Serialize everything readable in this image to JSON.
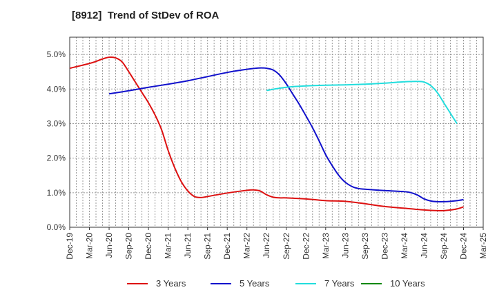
{
  "chart_data": {
    "type": "line",
    "title": "[8912]  Trend of StDev of ROA",
    "xlabel": "",
    "ylabel": "",
    "x_ticks": [
      "Dec-19",
      "Mar-20",
      "Jun-20",
      "Sep-20",
      "Dec-20",
      "Mar-21",
      "Jun-21",
      "Sep-21",
      "Dec-21",
      "Mar-22",
      "Jun-22",
      "Sep-22",
      "Dec-22",
      "Mar-23",
      "Jun-23",
      "Sep-23",
      "Dec-23",
      "Mar-24",
      "Jun-24",
      "Sep-24",
      "Dec-24",
      "Mar-25"
    ],
    "y_ticks": [
      "0.0%",
      "1.0%",
      "2.0%",
      "3.0%",
      "4.0%",
      "5.0%"
    ],
    "ylim": [
      0,
      5.5
    ],
    "grid": true,
    "legend_position": "bottom",
    "series": [
      {
        "name": "3 Years",
        "color": "#dd1111",
        "points": [
          [
            "Dec-19",
            4.6
          ],
          [
            "Mar-20",
            4.74
          ],
          [
            "Apr-20",
            4.8
          ],
          [
            "May-20",
            4.87
          ],
          [
            "Jun-20",
            4.92
          ],
          [
            "Jul-20",
            4.9
          ],
          [
            "Aug-20",
            4.78
          ],
          [
            "Sep-20",
            4.5
          ],
          [
            "Oct-20",
            4.2
          ],
          [
            "Nov-20",
            3.9
          ],
          [
            "Dec-20",
            3.6
          ],
          [
            "Jan-21",
            3.25
          ],
          [
            "Feb-21",
            2.82
          ],
          [
            "Mar-21",
            2.22
          ],
          [
            "Apr-21",
            1.72
          ],
          [
            "May-21",
            1.32
          ],
          [
            "Jun-21",
            1.05
          ],
          [
            "Jul-21",
            0.89
          ],
          [
            "Aug-21",
            0.86
          ],
          [
            "Sep-21",
            0.89
          ],
          [
            "Dec-21",
            0.99
          ],
          [
            "Mar-22",
            1.07
          ],
          [
            "Apr-22",
            1.08
          ],
          [
            "May-22",
            1.05
          ],
          [
            "Jun-22",
            0.94
          ],
          [
            "Jul-22",
            0.87
          ],
          [
            "Aug-22",
            0.85
          ],
          [
            "Sep-22",
            0.85
          ],
          [
            "Dec-22",
            0.82
          ],
          [
            "Mar-23",
            0.77
          ],
          [
            "Jun-23",
            0.75
          ],
          [
            "Sep-23",
            0.68
          ],
          [
            "Dec-23",
            0.6
          ],
          [
            "Mar-24",
            0.55
          ],
          [
            "Jun-24",
            0.5
          ],
          [
            "Aug-24",
            0.48
          ],
          [
            "Sep-24",
            0.48
          ],
          [
            "Oct-24",
            0.5
          ],
          [
            "Nov-24",
            0.53
          ],
          [
            "Dec-24",
            0.59
          ]
        ]
      },
      {
        "name": "5 Years",
        "color": "#1111cc",
        "points": [
          [
            "Jun-20",
            3.86
          ],
          [
            "Sep-20",
            3.95
          ],
          [
            "Dec-20",
            4.05
          ],
          [
            "Mar-21",
            4.14
          ],
          [
            "Jun-21",
            4.24
          ],
          [
            "Sep-21",
            4.36
          ],
          [
            "Dec-21",
            4.48
          ],
          [
            "Mar-22",
            4.57
          ],
          [
            "May-22",
            4.61
          ],
          [
            "Jun-22",
            4.6
          ],
          [
            "Jul-22",
            4.55
          ],
          [
            "Aug-22",
            4.4
          ],
          [
            "Sep-22",
            4.15
          ],
          [
            "Oct-22",
            3.85
          ],
          [
            "Nov-22",
            3.55
          ],
          [
            "Dec-22",
            3.22
          ],
          [
            "Jan-23",
            2.88
          ],
          [
            "Feb-23",
            2.5
          ],
          [
            "Mar-23",
            2.1
          ],
          [
            "Apr-23",
            1.78
          ],
          [
            "May-23",
            1.5
          ],
          [
            "Jun-23",
            1.3
          ],
          [
            "Jul-23",
            1.18
          ],
          [
            "Aug-23",
            1.12
          ],
          [
            "Sep-23",
            1.1
          ],
          [
            "Dec-23",
            1.06
          ],
          [
            "Mar-24",
            1.03
          ],
          [
            "Apr-24",
            1.0
          ],
          [
            "May-24",
            0.93
          ],
          [
            "Jun-24",
            0.82
          ],
          [
            "Jul-24",
            0.76
          ],
          [
            "Aug-24",
            0.74
          ],
          [
            "Sep-24",
            0.74
          ],
          [
            "Oct-24",
            0.75
          ],
          [
            "Nov-24",
            0.77
          ],
          [
            "Dec-24",
            0.8
          ]
        ]
      },
      {
        "name": "7 Years",
        "color": "#22dddd",
        "points": [
          [
            "Jun-22",
            3.96
          ],
          [
            "Sep-22",
            4.05
          ],
          [
            "Dec-22",
            4.09
          ],
          [
            "Mar-23",
            4.11
          ],
          [
            "Jun-23",
            4.12
          ],
          [
            "Sep-23",
            4.14
          ],
          [
            "Dec-23",
            4.17
          ],
          [
            "Mar-24",
            4.21
          ],
          [
            "May-24",
            4.22
          ],
          [
            "Jun-24",
            4.2
          ],
          [
            "Jul-24",
            4.1
          ],
          [
            "Aug-24",
            3.9
          ],
          [
            "Sep-24",
            3.6
          ],
          [
            "Oct-24",
            3.3
          ],
          [
            "Nov-24",
            3.0
          ]
        ]
      },
      {
        "name": "10 Years",
        "color": "#118811",
        "points": []
      }
    ]
  }
}
